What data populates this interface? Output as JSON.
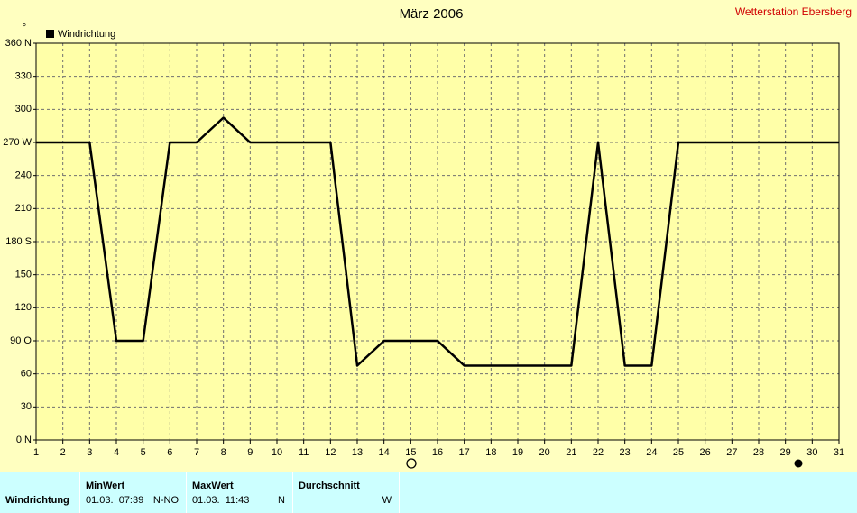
{
  "chart_data": {
    "type": "line",
    "title": "März 2006",
    "subtitle": "Wetterstation Ebersberg",
    "ylabel": "°",
    "x": [
      1,
      2,
      3,
      4,
      5,
      6,
      7,
      8,
      9,
      10,
      11,
      12,
      13,
      14,
      15,
      16,
      17,
      18,
      19,
      20,
      21,
      22,
      23,
      24,
      25,
      26,
      27,
      28,
      29,
      30,
      31
    ],
    "series": [
      {
        "name": "Windrichtung",
        "color": "#000000",
        "values": [
          270,
          270,
          270,
          90,
          90,
          270,
          270,
          292.5,
          270,
          270,
          270,
          270,
          67.5,
          90,
          90,
          90,
          67.5,
          67.5,
          67.5,
          67.5,
          67.5,
          270,
          67.5,
          67.5,
          270,
          270,
          270,
          270,
          270,
          270,
          270
        ]
      }
    ],
    "xlim": [
      1,
      31
    ],
    "xticks": [
      1,
      2,
      3,
      4,
      5,
      6,
      7,
      8,
      9,
      10,
      11,
      12,
      13,
      14,
      15,
      16,
      17,
      18,
      19,
      20,
      21,
      22,
      23,
      24,
      25,
      26,
      27,
      28,
      29,
      30,
      31
    ],
    "ylim": [
      0,
      360
    ],
    "yticks": [
      {
        "value": 0,
        "label": "0 N"
      },
      30,
      60,
      {
        "value": 90,
        "label": "90 O"
      },
      120,
      150,
      {
        "value": 180,
        "label": "180 S"
      },
      210,
      240,
      {
        "value": 270,
        "label": "270 W"
      },
      300,
      330,
      {
        "value": 360,
        "label": "360 N"
      }
    ],
    "grid": true,
    "legend": "top-left"
  },
  "summary": {
    "row_label": "Windrichtung",
    "min": {
      "header": "MinWert",
      "time": "01.03.  07:39",
      "dir": "N-NO"
    },
    "max": {
      "header": "MaxWert",
      "time": "01.03.  11:43",
      "dir": "N"
    },
    "avg": {
      "header": "Durchschnitt",
      "dir": "W"
    }
  }
}
